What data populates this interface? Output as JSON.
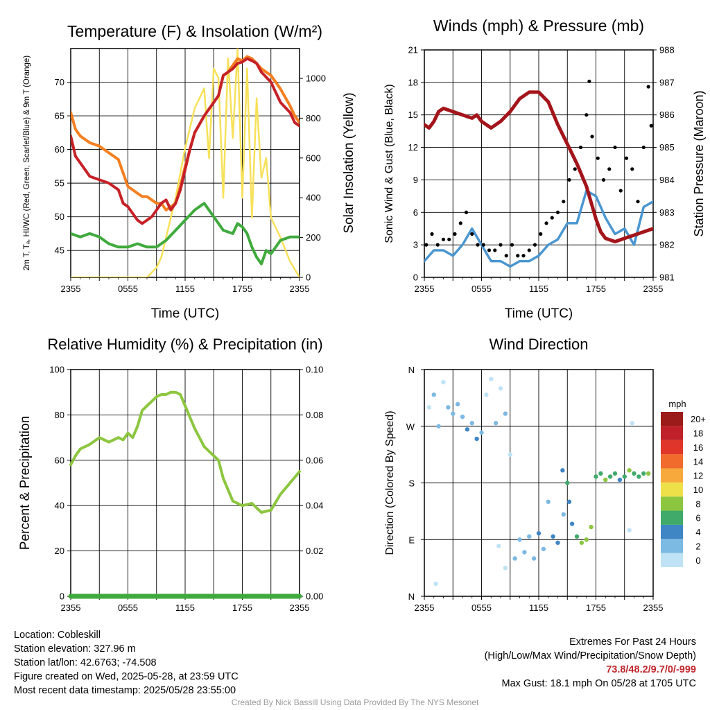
{
  "chart_data": [
    {
      "type": "line",
      "title": "Temperature (F) & Insolation (W/m²)",
      "xlabel": "Time (UTC)",
      "ylabel_left": "2m T, Tₐ, HI/WC (Red, Green, Scarlet/Blue) & 9m T (Orange)",
      "ylabel_right": "Solar Insolation (Yellow)",
      "x_ticks": [
        "2355",
        "0555",
        "1155",
        "1755",
        "2355"
      ],
      "x_range_hours": [
        0,
        24
      ],
      "ylim_left": [
        41,
        75
      ],
      "y_ticks_left": [
        45,
        50,
        55,
        60,
        65,
        70
      ],
      "ylim_right": [
        0,
        1150
      ],
      "y_ticks_right": [
        0,
        200,
        400,
        600,
        800,
        1000
      ],
      "series": [
        {
          "name": "2m T",
          "color": "#c62127",
          "axis": "left",
          "x": [
            0,
            0.5,
            1,
            2,
            3,
            4,
            5,
            5.5,
            6,
            7,
            7.5,
            8,
            8.5,
            9,
            9.5,
            10,
            10.5,
            11,
            11.5,
            12,
            12.5,
            13,
            14,
            15,
            15.5,
            16,
            16.5,
            17,
            17.5,
            18,
            18.5,
            19,
            19.5,
            20,
            21,
            22,
            23,
            23.5,
            24
          ],
          "y": [
            62,
            59,
            58,
            56,
            55.5,
            55,
            54,
            52,
            51.5,
            49.5,
            49,
            49.5,
            50,
            51,
            52,
            52.5,
            51,
            52,
            54,
            57,
            60,
            62.5,
            65,
            67,
            68,
            71,
            71.5,
            72,
            72.8,
            73,
            73.5,
            73.2,
            72.8,
            71.5,
            70,
            67,
            65.5,
            64,
            63.5
          ]
        },
        {
          "name": "9m T",
          "color": "#f47f20",
          "axis": "left",
          "x": [
            0,
            0.5,
            1,
            2,
            3,
            4,
            5,
            5.5,
            6,
            7,
            7.5,
            8,
            8.5,
            9,
            9.5,
            10,
            10.5,
            11,
            11.5,
            12,
            12.5,
            13,
            14,
            15,
            15.5,
            16,
            16.5,
            17,
            17.5,
            18,
            18.5,
            19,
            19.5,
            20,
            21,
            22,
            23,
            23.5,
            24
          ],
          "y": [
            65.5,
            63,
            62,
            61,
            60.5,
            59.5,
            58.5,
            56.5,
            54.5,
            53.5,
            53,
            53,
            52.5,
            52,
            52,
            51,
            51.5,
            52,
            54.5,
            57.5,
            60,
            62.5,
            65,
            67,
            68,
            71,
            71.5,
            72.5,
            73.5,
            73.2,
            73.8,
            73.5,
            72.8,
            72,
            71,
            69,
            66.5,
            65,
            64
          ]
        },
        {
          "name": "Tₐ",
          "color": "#3faa3c",
          "axis": "left",
          "x": [
            0,
            1,
            2,
            3,
            4,
            5,
            6,
            7,
            8,
            9,
            10,
            11,
            12,
            13,
            14,
            15,
            16,
            17,
            17.5,
            18,
            18.5,
            19,
            19.5,
            20,
            20.5,
            21,
            22,
            23,
            24
          ],
          "y": [
            47.5,
            47,
            47.5,
            47,
            46,
            45.5,
            45.5,
            46,
            45.5,
            45.5,
            46.5,
            48,
            49.5,
            51,
            52,
            50,
            48,
            47.5,
            49,
            48.5,
            47.5,
            45.5,
            44,
            43,
            45,
            44.5,
            46.5,
            47,
            47
          ]
        },
        {
          "name": "Solar Insolation",
          "color": "#f7e15a",
          "axis": "right",
          "x": [
            0,
            8,
            9,
            9.5,
            10,
            11,
            12,
            13,
            14,
            14.5,
            15,
            15.5,
            16,
            16.5,
            17,
            17.5,
            18,
            18.5,
            19,
            19.5,
            20,
            20.5,
            21,
            22,
            23,
            24
          ],
          "y": [
            0,
            0,
            50,
            100,
            200,
            400,
            650,
            850,
            950,
            600,
            1050,
            1000,
            400,
            1100,
            700,
            1150,
            400,
            1050,
            300,
            900,
            500,
            600,
            300,
            200,
            80,
            0
          ]
        }
      ]
    },
    {
      "type": "line",
      "title": "Winds (mph) & Pressure (mb)",
      "xlabel": "Time (UTC)",
      "ylabel_left": "Sonic Wind & Gust (Blue, Black)",
      "ylabel_right": "Station Pressure (Maroon)",
      "x_ticks": [
        "2355",
        "0555",
        "1155",
        "1755",
        "2355"
      ],
      "x_range_hours": [
        0,
        24
      ],
      "ylim_left": [
        0,
        21
      ],
      "y_ticks_left": [
        0,
        3,
        6,
        9,
        12,
        15,
        18,
        21
      ],
      "ylim_right": [
        981,
        988
      ],
      "y_ticks_right": [
        981,
        982,
        983,
        984,
        985,
        986,
        987,
        988
      ],
      "series": [
        {
          "name": "Sonic Wind",
          "color": "#4a96d1",
          "axis": "left",
          "x": [
            0,
            1,
            2,
            3,
            4,
            5,
            6,
            7,
            8,
            9,
            10,
            11,
            12,
            13,
            14,
            15,
            16,
            17,
            18,
            19,
            20,
            21,
            22,
            23,
            24
          ],
          "y": [
            1.5,
            2.5,
            2.5,
            2,
            3,
            4.5,
            3,
            1.5,
            1.5,
            1,
            1.5,
            1.5,
            2,
            3,
            3.5,
            5,
            5,
            8,
            7.5,
            5.5,
            4,
            4.5,
            3,
            6.5,
            7
          ]
        },
        {
          "name": "Gust",
          "color": "#000000",
          "axis": "left",
          "mode": "markers",
          "x": [
            0.2,
            0.8,
            1.4,
            2,
            2.6,
            3.2,
            3.8,
            4.4,
            5,
            5.6,
            6.2,
            6.8,
            7.4,
            8,
            8.6,
            9.2,
            9.8,
            10.4,
            11,
            11.6,
            12.2,
            12.8,
            13.4,
            14,
            14.6,
            15.2,
            15.8,
            16.4,
            17,
            17.3,
            17.6,
            18.2,
            18.8,
            19.4,
            20,
            20.6,
            21.2,
            21.8,
            22.4,
            23,
            23.5,
            23.8
          ],
          "y": [
            3,
            4,
            3,
            3.5,
            3.5,
            4,
            5,
            6,
            4,
            3,
            3,
            2.5,
            2.5,
            3,
            2,
            3,
            2,
            2,
            2.5,
            3,
            4,
            5,
            5.5,
            6,
            7,
            9,
            10,
            12,
            15,
            18.1,
            13,
            11,
            9,
            10,
            12,
            8,
            11,
            10,
            7,
            12,
            17.6,
            14
          ]
        },
        {
          "name": "Station Pressure",
          "color": "#a3151b",
          "axis": "right",
          "x": [
            0,
            0.5,
            1,
            1.5,
            2,
            3,
            4,
            5,
            5.5,
            6,
            7,
            8,
            9,
            10,
            11,
            12,
            13,
            14,
            15,
            16,
            17,
            17.5,
            18,
            18.5,
            19,
            20,
            21,
            22,
            23,
            24
          ],
          "y": [
            985.7,
            985.6,
            985.8,
            986.1,
            986.2,
            986.1,
            986,
            985.9,
            986,
            985.8,
            985.6,
            985.8,
            986.1,
            986.5,
            986.7,
            986.7,
            986.4,
            985.7,
            985.1,
            984.5,
            983.8,
            983.3,
            982.8,
            982.4,
            982.2,
            982.1,
            982.2,
            982.3,
            982.4,
            982.5
          ]
        }
      ]
    },
    {
      "type": "line",
      "title": "Relative Humidity (%) & Precipitation (in)",
      "xlabel": "",
      "ylabel_left": "Percent & Precipitation",
      "x_ticks": [
        "2355",
        "0555",
        "1155",
        "1755",
        "2355"
      ],
      "x_range_hours": [
        0,
        24
      ],
      "ylim_left": [
        0,
        100
      ],
      "y_ticks_left": [
        0,
        20,
        40,
        60,
        80,
        100
      ],
      "ylim_right": [
        0,
        0.1
      ],
      "y_ticks_right": [
        "0.00",
        "0.02",
        "0.04",
        "0.06",
        "0.08",
        "0.10"
      ],
      "series": [
        {
          "name": "Relative Humidity",
          "color": "#8cc63f",
          "axis": "left",
          "x": [
            0,
            0.5,
            1,
            2,
            3,
            4,
            5,
            5.5,
            6,
            6.5,
            7,
            7.5,
            8,
            8.5,
            9,
            9.5,
            10,
            10.5,
            11,
            11.5,
            12,
            13,
            14,
            15,
            15.5,
            16,
            17,
            18,
            19,
            19.5,
            20,
            21,
            22,
            23,
            24
          ],
          "y": [
            58,
            62,
            65,
            67,
            70,
            68,
            70,
            69,
            72,
            70,
            75,
            82,
            84,
            86,
            88,
            89,
            89,
            90,
            90,
            89,
            84,
            74,
            66,
            62,
            60,
            52,
            42,
            40,
            41,
            39,
            37,
            38,
            45,
            50,
            55
          ]
        },
        {
          "name": "Precipitation",
          "color": "#3faa3c",
          "axis": "left",
          "x": [
            0,
            24
          ],
          "y": [
            0,
            0
          ]
        }
      ]
    },
    {
      "type": "scatter",
      "title": "Wind Direction",
      "ylabel": "Direction (Colored By Speed)",
      "x_ticks": [
        "2355",
        "0555",
        "1155",
        "1755",
        "2355"
      ],
      "x_range_hours": [
        0,
        24
      ],
      "y_ticks": [
        "N",
        "E",
        "S",
        "W",
        "N"
      ],
      "ylim_degrees": [
        0,
        360
      ],
      "colorbar": {
        "title": "mph",
        "labels": [
          "0",
          "2",
          "4",
          "6",
          "8",
          "10",
          "12",
          "14",
          "16",
          "18",
          "20+"
        ],
        "colors": [
          "#bfe3f5",
          "#7cb9e3",
          "#3f86c4",
          "#3faa6a",
          "#8cc63f",
          "#ede049",
          "#f7a93c",
          "#f06b2c",
          "#e0362a",
          "#c0202a",
          "#9b1b1b"
        ]
      },
      "points": [
        {
          "x": 0.5,
          "dir": 300,
          "speed": 1
        },
        {
          "x": 1,
          "dir": 320,
          "speed": 2
        },
        {
          "x": 1.5,
          "dir": 270,
          "speed": 2
        },
        {
          "x": 2,
          "dir": 340,
          "speed": 1
        },
        {
          "x": 2.5,
          "dir": 300,
          "speed": 2
        },
        {
          "x": 3,
          "dir": 290,
          "speed": 3
        },
        {
          "x": 3.5,
          "dir": 305,
          "speed": 2
        },
        {
          "x": 4,
          "dir": 285,
          "speed": 3
        },
        {
          "x": 4.5,
          "dir": 265,
          "speed": 4
        },
        {
          "x": 5,
          "dir": 275,
          "speed": 3
        },
        {
          "x": 5.5,
          "dir": 250,
          "speed": 4
        },
        {
          "x": 6,
          "dir": 260,
          "speed": 3
        },
        {
          "x": 6.5,
          "dir": 320,
          "speed": 1
        },
        {
          "x": 7,
          "dir": 345,
          "speed": 1
        },
        {
          "x": 7.5,
          "dir": 275,
          "speed": 2
        },
        {
          "x": 8,
          "dir": 330,
          "speed": 1
        },
        {
          "x": 8.5,
          "dir": 290,
          "speed": 2
        },
        {
          "x": 9,
          "dir": 225,
          "speed": 1
        },
        {
          "x": 1.2,
          "dir": 20,
          "speed": 1
        },
        {
          "x": 7.8,
          "dir": 80,
          "speed": 1
        },
        {
          "x": 8.5,
          "dir": 45,
          "speed": 1
        },
        {
          "x": 9.5,
          "dir": 60,
          "speed": 2
        },
        {
          "x": 10,
          "dir": 90,
          "speed": 3
        },
        {
          "x": 10.5,
          "dir": 70,
          "speed": 2
        },
        {
          "x": 11,
          "dir": 95,
          "speed": 3
        },
        {
          "x": 11.5,
          "dir": 60,
          "speed": 2
        },
        {
          "x": 12,
          "dir": 100,
          "speed": 4
        },
        {
          "x": 12.5,
          "dir": 75,
          "speed": 3
        },
        {
          "x": 13,
          "dir": 150,
          "speed": 2
        },
        {
          "x": 13.5,
          "dir": 95,
          "speed": 4
        },
        {
          "x": 14,
          "dir": 85,
          "speed": 5
        },
        {
          "x": 14.5,
          "dir": 200,
          "speed": 4
        },
        {
          "x": 15,
          "dir": 180,
          "speed": 6
        },
        {
          "x": 15.5,
          "dir": 115,
          "speed": 5
        },
        {
          "x": 16,
          "dir": 95,
          "speed": 7
        },
        {
          "x": 16.5,
          "dir": 85,
          "speed": 8
        },
        {
          "x": 17,
          "dir": 90,
          "speed": 9
        },
        {
          "x": 17.5,
          "dir": 110,
          "speed": 8
        },
        {
          "x": 18,
          "dir": 190,
          "speed": 6
        },
        {
          "x": 18.5,
          "dir": 195,
          "speed": 7
        },
        {
          "x": 19,
          "dir": 185,
          "speed": 8
        },
        {
          "x": 19.5,
          "dir": 190,
          "speed": 6
        },
        {
          "x": 20,
          "dir": 195,
          "speed": 7
        },
        {
          "x": 20.5,
          "dir": 185,
          "speed": 5
        },
        {
          "x": 21,
          "dir": 190,
          "speed": 6
        },
        {
          "x": 21.5,
          "dir": 200,
          "speed": 8
        },
        {
          "x": 22,
          "dir": 195,
          "speed": 7
        },
        {
          "x": 22.5,
          "dir": 190,
          "speed": 6
        },
        {
          "x": 23,
          "dir": 195,
          "speed": 7
        },
        {
          "x": 23.5,
          "dir": 195,
          "speed": 8
        },
        {
          "x": 21.5,
          "dir": 105,
          "speed": 1
        },
        {
          "x": 21.8,
          "dir": 275,
          "speed": 1
        },
        {
          "x": 14.6,
          "dir": 130,
          "speed": 3
        },
        {
          "x": 15.2,
          "dir": 150,
          "speed": 4
        }
      ]
    }
  ],
  "footer": {
    "location": "Location: Cobleskill",
    "elevation": "Station elevation: 327.96 m",
    "latlon": "Station lat/lon: 42.6763; -74.508",
    "created": "Figure created on Wed, 2025-05-28, at 23:59 UTC",
    "recent": "Most recent data timestamp: 2025/05/28 23:55:00",
    "extremes_title": "Extremes For Past 24 Hours",
    "extremes_legend": "(High/Low/Max Wind/Precipitation/Snow Depth)",
    "extremes_values": "73.8/48.2/9.7/0/-999",
    "max_gust": "Max Gust: 18.1 mph On 05/28 at 1705 UTC",
    "credit": "Created By Nick Bassill Using Data Provided By The NYS Mesonet"
  }
}
